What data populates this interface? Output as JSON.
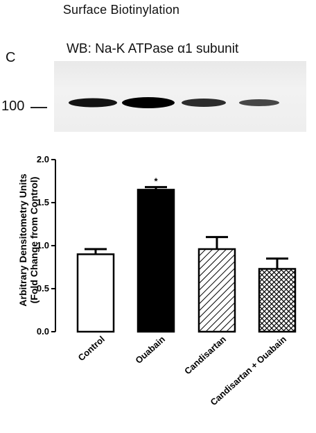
{
  "figure": {
    "title": "Surface Biotinylation",
    "panel_letter": "C",
    "blot": {
      "label": "WB: Na-K ATPase α1 subunit",
      "marker_label": "100",
      "band_intensity": [
        0.88,
        1.0,
        0.72,
        0.55
      ]
    }
  },
  "chart_data": {
    "type": "bar",
    "categories": [
      "Control",
      "Ouabain",
      "Candisartan",
      "Candisartan + Ouabain"
    ],
    "values": [
      0.9,
      1.65,
      0.96,
      0.73
    ],
    "errors": [
      0.06,
      0.03,
      0.14,
      0.12
    ],
    "fills": [
      "open",
      "solid",
      "hatch",
      "crosshatch"
    ],
    "annotations": [
      "",
      "*",
      "",
      ""
    ],
    "ylabel_line1": "Arbitrary Densitometry Units",
    "ylabel_line2": "(Fold Change from Control)",
    "xlabel": "",
    "ylim": [
      0,
      2.0
    ],
    "yticks": [
      "0.0",
      "0.5",
      "1.0",
      "1.5",
      "2.0"
    ],
    "grid": false,
    "legend": "none",
    "colors": {
      "bar_stroke": "#000000",
      "solid_fill": "#000000",
      "open_fill": "#ffffff"
    }
  }
}
